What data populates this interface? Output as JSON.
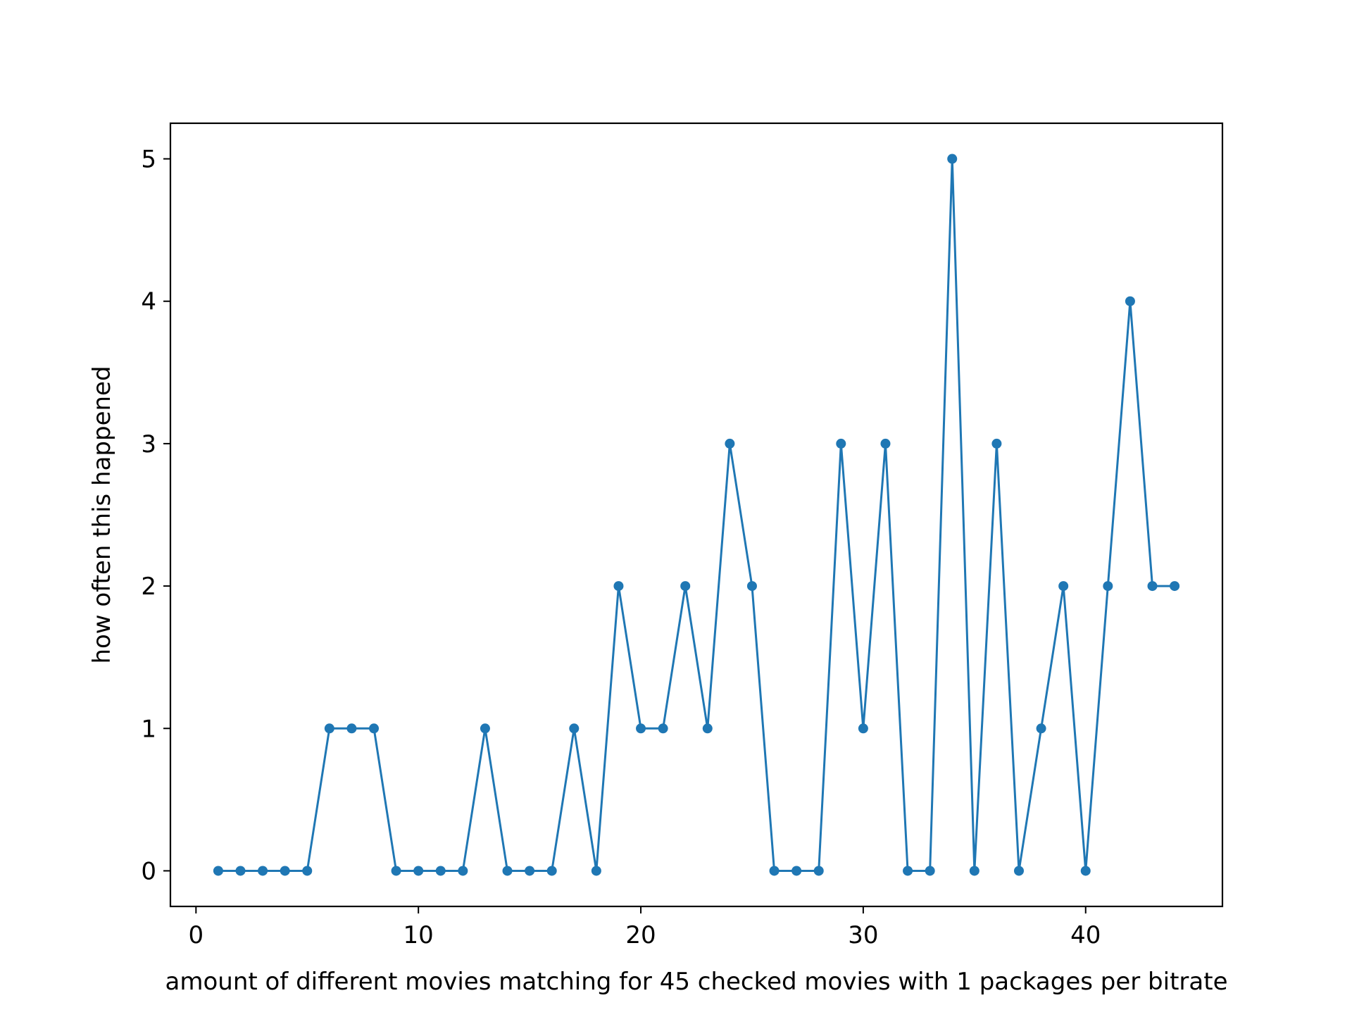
{
  "chart_data": {
    "type": "line",
    "title": "",
    "xlabel": "amount of different movies matching for 45 checked movies with 1 packages per bitrate",
    "ylabel": "how often this happened",
    "xlim": [
      -1.15,
      46.15
    ],
    "ylim": [
      -0.25,
      5.25
    ],
    "xticks": [
      0,
      10,
      20,
      30,
      40
    ],
    "yticks": [
      0,
      1,
      2,
      3,
      4,
      5
    ],
    "grid": false,
    "legend": "none",
    "series": [
      {
        "color": "#1f77b4",
        "marker": "circle",
        "x": [
          1,
          2,
          3,
          4,
          5,
          6,
          7,
          8,
          9,
          10,
          11,
          12,
          13,
          14,
          15,
          16,
          17,
          18,
          19,
          20,
          21,
          22,
          23,
          24,
          25,
          26,
          27,
          28,
          29,
          30,
          31,
          32,
          33,
          34,
          35,
          36,
          37,
          38,
          39,
          40,
          41,
          42,
          43,
          44
        ],
        "y": [
          0,
          0,
          0,
          0,
          0,
          1,
          1,
          1,
          0,
          0,
          0,
          0,
          1,
          0,
          0,
          0,
          1,
          0,
          2,
          1,
          1,
          2,
          1,
          3,
          2,
          0,
          0,
          0,
          3,
          1,
          3,
          0,
          0,
          5,
          0,
          3,
          0,
          1,
          2,
          0,
          2,
          4,
          2,
          2
        ]
      }
    ]
  }
}
